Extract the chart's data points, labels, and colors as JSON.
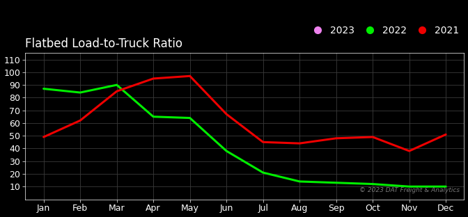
{
  "title": "Flatbed Load-to-Truck Ratio",
  "background_color": "#000000",
  "text_color": "#ffffff",
  "grid_color": "#3a3a3a",
  "months": [
    "Jan",
    "Feb",
    "Mar",
    "Apr",
    "May",
    "Jun",
    "Jul",
    "Aug",
    "Sep",
    "Oct",
    "Nov",
    "Dec"
  ],
  "series": [
    {
      "label": "2023",
      "color": "#ee82ee",
      "linewidth": 2.2,
      "values": [
        null,
        null,
        null,
        null,
        null,
        null,
        null,
        null,
        null,
        null,
        null,
        null
      ]
    },
    {
      "label": "2022",
      "color": "#00ee00",
      "linewidth": 2.2,
      "values": [
        87,
        84,
        90,
        65,
        64,
        38,
        21,
        14,
        13,
        12,
        10,
        10
      ]
    },
    {
      "label": "2021",
      "color": "#ee0000",
      "linewidth": 2.2,
      "values": [
        49,
        62,
        85,
        95,
        97,
        67,
        45,
        44,
        48,
        49,
        38,
        51
      ]
    }
  ],
  "ylim": [
    0,
    115
  ],
  "yticks": [
    10,
    20,
    30,
    40,
    50,
    60,
    70,
    80,
    90,
    100,
    110
  ],
  "watermark": "© 2023 DAT Freight & Analytics",
  "watermark_color": "#777777",
  "title_fontsize": 12,
  "tick_fontsize": 9,
  "legend_fontsize": 10
}
